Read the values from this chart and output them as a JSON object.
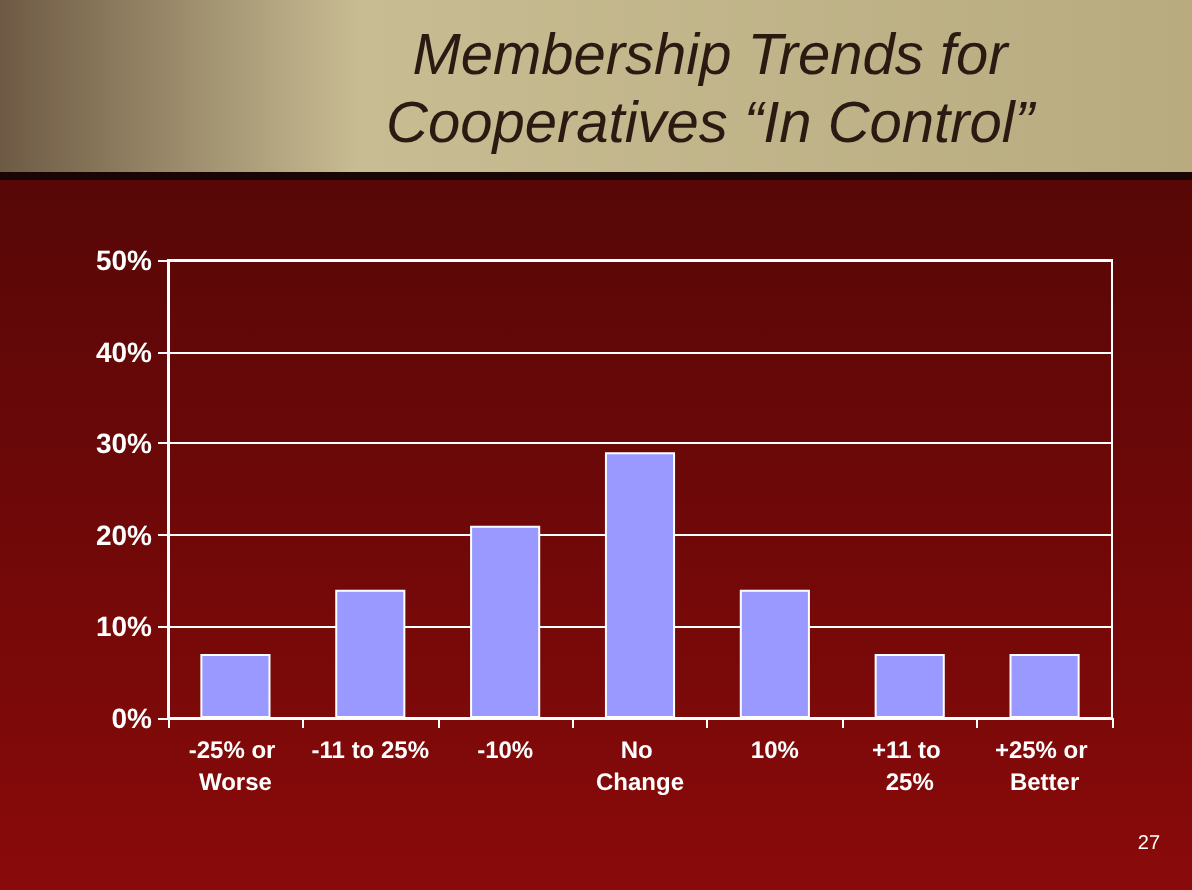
{
  "chart_data": {
    "type": "bar",
    "title": "Membership Trends for\nCooperatives “In Control”",
    "categories": [
      "-25% or Worse",
      "-11 to 25%",
      "-10%",
      "No Change",
      "10%",
      "+11 to 25%",
      "+25% or Better"
    ],
    "values": [
      7,
      14,
      21,
      29,
      14,
      7,
      7
    ],
    "color": "#9999ff",
    "ylim": [
      0,
      50
    ],
    "yticks": [
      {
        "value": 0,
        "label": "0%"
      },
      {
        "value": 10,
        "label": "10%"
      },
      {
        "value": 20,
        "label": "20%"
      },
      {
        "value": 30,
        "label": "30%"
      },
      {
        "value": 40,
        "label": "40%"
      },
      {
        "value": 50,
        "label": "50%"
      }
    ],
    "grid": "y",
    "annotations": [
      "27"
    ]
  }
}
